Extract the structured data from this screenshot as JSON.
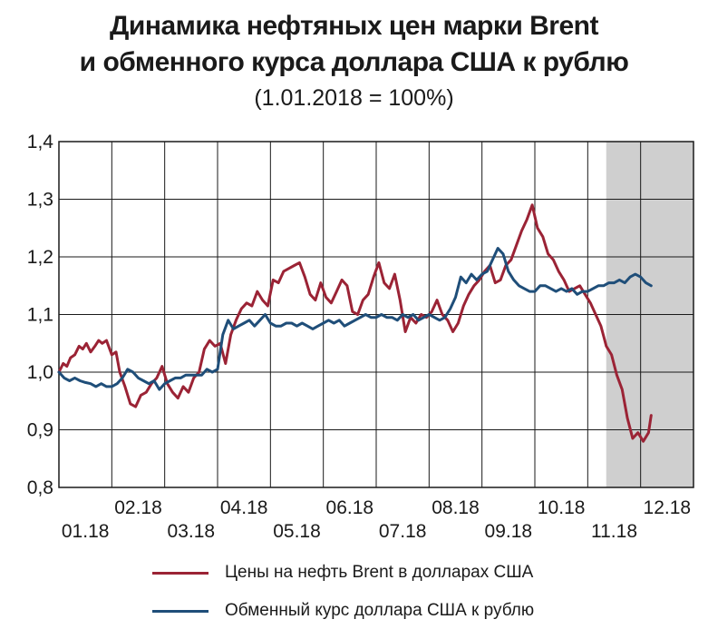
{
  "chart_data": {
    "type": "line",
    "title": "Динамика нефтяных цен марки Brent",
    "title_line2": "и обменного курса доллара США к рублю",
    "subtitle": "(1.01.2018 = 100%)",
    "ylim": [
      0.8,
      1.4
    ],
    "yticks": [
      "1,4",
      "1,3",
      "1,2",
      "1,1",
      "1,0",
      "0,9",
      "0,8"
    ],
    "xticks_upper": [
      "02.18",
      "04.18",
      "06.18",
      "08.18",
      "10.18",
      "12.18"
    ],
    "xticks_lower": [
      "01.18",
      "03.18",
      "05.18",
      "07.18",
      "09.18",
      "11.18"
    ],
    "grid": true,
    "shaded_region": {
      "from_month": 10.35,
      "to_month": 12
    },
    "legend_position": "bottom",
    "series": [
      {
        "name": "Цены на нефть Brent в долларах США",
        "color": "#9b2335",
        "points": [
          [
            0,
            1.0
          ],
          [
            0.08,
            1.015
          ],
          [
            0.15,
            1.01
          ],
          [
            0.22,
            1.025
          ],
          [
            0.3,
            1.03
          ],
          [
            0.38,
            1.045
          ],
          [
            0.45,
            1.04
          ],
          [
            0.52,
            1.05
          ],
          [
            0.6,
            1.035
          ],
          [
            0.68,
            1.045
          ],
          [
            0.75,
            1.055
          ],
          [
            0.82,
            1.05
          ],
          [
            0.9,
            1.055
          ],
          [
            1.0,
            1.03
          ],
          [
            1.08,
            1.035
          ],
          [
            1.15,
            1.0
          ],
          [
            1.25,
            0.975
          ],
          [
            1.35,
            0.945
          ],
          [
            1.45,
            0.94
          ],
          [
            1.55,
            0.96
          ],
          [
            1.65,
            0.965
          ],
          [
            1.75,
            0.98
          ],
          [
            1.85,
            0.99
          ],
          [
            1.95,
            1.01
          ],
          [
            2.05,
            0.98
          ],
          [
            2.15,
            0.965
          ],
          [
            2.25,
            0.955
          ],
          [
            2.35,
            0.975
          ],
          [
            2.45,
            0.965
          ],
          [
            2.55,
            0.99
          ],
          [
            2.65,
            1.0
          ],
          [
            2.75,
            1.04
          ],
          [
            2.85,
            1.055
          ],
          [
            2.95,
            1.045
          ],
          [
            3.05,
            1.05
          ],
          [
            3.15,
            1.015
          ],
          [
            3.25,
            1.065
          ],
          [
            3.35,
            1.09
          ],
          [
            3.45,
            1.11
          ],
          [
            3.55,
            1.12
          ],
          [
            3.65,
            1.115
          ],
          [
            3.75,
            1.14
          ],
          [
            3.85,
            1.125
          ],
          [
            3.95,
            1.115
          ],
          [
            4.05,
            1.16
          ],
          [
            4.15,
            1.155
          ],
          [
            4.25,
            1.175
          ],
          [
            4.35,
            1.18
          ],
          [
            4.45,
            1.185
          ],
          [
            4.55,
            1.19
          ],
          [
            4.65,
            1.165
          ],
          [
            4.75,
            1.135
          ],
          [
            4.85,
            1.125
          ],
          [
            4.95,
            1.155
          ],
          [
            5.05,
            1.13
          ],
          [
            5.15,
            1.12
          ],
          [
            5.25,
            1.14
          ],
          [
            5.35,
            1.16
          ],
          [
            5.45,
            1.15
          ],
          [
            5.55,
            1.105
          ],
          [
            5.65,
            1.1
          ],
          [
            5.75,
            1.125
          ],
          [
            5.85,
            1.135
          ],
          [
            5.95,
            1.165
          ],
          [
            6.05,
            1.19
          ],
          [
            6.15,
            1.155
          ],
          [
            6.25,
            1.145
          ],
          [
            6.35,
            1.17
          ],
          [
            6.45,
            1.125
          ],
          [
            6.55,
            1.07
          ],
          [
            6.65,
            1.095
          ],
          [
            6.75,
            1.085
          ],
          [
            6.85,
            1.1
          ],
          [
            6.95,
            1.095
          ],
          [
            7.05,
            1.105
          ],
          [
            7.15,
            1.125
          ],
          [
            7.25,
            1.1
          ],
          [
            7.35,
            1.09
          ],
          [
            7.45,
            1.07
          ],
          [
            7.55,
            1.085
          ],
          [
            7.65,
            1.115
          ],
          [
            7.75,
            1.135
          ],
          [
            7.85,
            1.15
          ],
          [
            7.95,
            1.16
          ],
          [
            8.05,
            1.175
          ],
          [
            8.15,
            1.185
          ],
          [
            8.25,
            1.155
          ],
          [
            8.35,
            1.16
          ],
          [
            8.45,
            1.185
          ],
          [
            8.55,
            1.195
          ],
          [
            8.65,
            1.22
          ],
          [
            8.75,
            1.245
          ],
          [
            8.85,
            1.265
          ],
          [
            8.95,
            1.29
          ],
          [
            9.05,
            1.25
          ],
          [
            9.15,
            1.235
          ],
          [
            9.25,
            1.205
          ],
          [
            9.35,
            1.195
          ],
          [
            9.45,
            1.175
          ],
          [
            9.55,
            1.16
          ],
          [
            9.65,
            1.14
          ],
          [
            9.75,
            1.145
          ],
          [
            9.85,
            1.15
          ],
          [
            9.95,
            1.135
          ],
          [
            10.05,
            1.12
          ],
          [
            10.15,
            1.1
          ],
          [
            10.25,
            1.08
          ],
          [
            10.35,
            1.045
          ],
          [
            10.45,
            1.03
          ],
          [
            10.55,
            0.995
          ],
          [
            10.65,
            0.97
          ],
          [
            10.75,
            0.92
          ],
          [
            10.85,
            0.885
          ],
          [
            10.95,
            0.895
          ],
          [
            11.05,
            0.88
          ],
          [
            11.15,
            0.895
          ],
          [
            11.2,
            0.925
          ]
        ]
      },
      {
        "name": "Обменный курс доллара США к рублю",
        "color": "#1f4e79",
        "points": [
          [
            0,
            1.0
          ],
          [
            0.1,
            0.99
          ],
          [
            0.2,
            0.985
          ],
          [
            0.3,
            0.99
          ],
          [
            0.4,
            0.985
          ],
          [
            0.5,
            0.982
          ],
          [
            0.6,
            0.98
          ],
          [
            0.7,
            0.975
          ],
          [
            0.8,
            0.98
          ],
          [
            0.9,
            0.975
          ],
          [
            1.0,
            0.975
          ],
          [
            1.1,
            0.98
          ],
          [
            1.2,
            0.99
          ],
          [
            1.3,
            1.005
          ],
          [
            1.4,
            1.0
          ],
          [
            1.5,
            0.99
          ],
          [
            1.6,
            0.985
          ],
          [
            1.7,
            0.98
          ],
          [
            1.8,
            0.985
          ],
          [
            1.9,
            0.97
          ],
          [
            2.0,
            0.98
          ],
          [
            2.1,
            0.985
          ],
          [
            2.2,
            0.99
          ],
          [
            2.3,
            0.99
          ],
          [
            2.4,
            0.995
          ],
          [
            2.5,
            0.995
          ],
          [
            2.6,
            0.995
          ],
          [
            2.7,
            0.995
          ],
          [
            2.8,
            1.005
          ],
          [
            2.9,
            1.0
          ],
          [
            3.0,
            1.005
          ],
          [
            3.1,
            1.065
          ],
          [
            3.2,
            1.09
          ],
          [
            3.3,
            1.075
          ],
          [
            3.4,
            1.08
          ],
          [
            3.5,
            1.085
          ],
          [
            3.6,
            1.09
          ],
          [
            3.7,
            1.08
          ],
          [
            3.8,
            1.09
          ],
          [
            3.9,
            1.1
          ],
          [
            4.0,
            1.085
          ],
          [
            4.1,
            1.08
          ],
          [
            4.2,
            1.08
          ],
          [
            4.3,
            1.085
          ],
          [
            4.4,
            1.085
          ],
          [
            4.5,
            1.08
          ],
          [
            4.6,
            1.085
          ],
          [
            4.7,
            1.08
          ],
          [
            4.8,
            1.075
          ],
          [
            4.9,
            1.08
          ],
          [
            5.0,
            1.085
          ],
          [
            5.1,
            1.09
          ],
          [
            5.2,
            1.085
          ],
          [
            5.3,
            1.09
          ],
          [
            5.4,
            1.08
          ],
          [
            5.5,
            1.085
          ],
          [
            5.6,
            1.09
          ],
          [
            5.7,
            1.095
          ],
          [
            5.8,
            1.1
          ],
          [
            5.9,
            1.095
          ],
          [
            6.0,
            1.095
          ],
          [
            6.1,
            1.1
          ],
          [
            6.2,
            1.095
          ],
          [
            6.3,
            1.095
          ],
          [
            6.4,
            1.09
          ],
          [
            6.5,
            1.1
          ],
          [
            6.6,
            1.095
          ],
          [
            6.7,
            1.1
          ],
          [
            6.8,
            1.09
          ],
          [
            6.9,
            1.095
          ],
          [
            7.0,
            1.1
          ],
          [
            7.1,
            1.095
          ],
          [
            7.2,
            1.09
          ],
          [
            7.3,
            1.095
          ],
          [
            7.4,
            1.11
          ],
          [
            7.5,
            1.13
          ],
          [
            7.6,
            1.165
          ],
          [
            7.7,
            1.155
          ],
          [
            7.8,
            1.17
          ],
          [
            7.9,
            1.16
          ],
          [
            8.0,
            1.17
          ],
          [
            8.1,
            1.175
          ],
          [
            8.2,
            1.195
          ],
          [
            8.3,
            1.215
          ],
          [
            8.4,
            1.205
          ],
          [
            8.5,
            1.175
          ],
          [
            8.6,
            1.16
          ],
          [
            8.7,
            1.15
          ],
          [
            8.8,
            1.145
          ],
          [
            8.9,
            1.14
          ],
          [
            9.0,
            1.14
          ],
          [
            9.1,
            1.15
          ],
          [
            9.2,
            1.15
          ],
          [
            9.3,
            1.145
          ],
          [
            9.4,
            1.14
          ],
          [
            9.5,
            1.145
          ],
          [
            9.6,
            1.14
          ],
          [
            9.7,
            1.145
          ],
          [
            9.8,
            1.135
          ],
          [
            9.9,
            1.14
          ],
          [
            10.0,
            1.14
          ],
          [
            10.1,
            1.145
          ],
          [
            10.2,
            1.15
          ],
          [
            10.3,
            1.15
          ],
          [
            10.4,
            1.155
          ],
          [
            10.5,
            1.155
          ],
          [
            10.6,
            1.16
          ],
          [
            10.7,
            1.155
          ],
          [
            10.8,
            1.165
          ],
          [
            10.9,
            1.17
          ],
          [
            11.0,
            1.165
          ],
          [
            11.1,
            1.155
          ],
          [
            11.2,
            1.15
          ]
        ]
      }
    ]
  }
}
